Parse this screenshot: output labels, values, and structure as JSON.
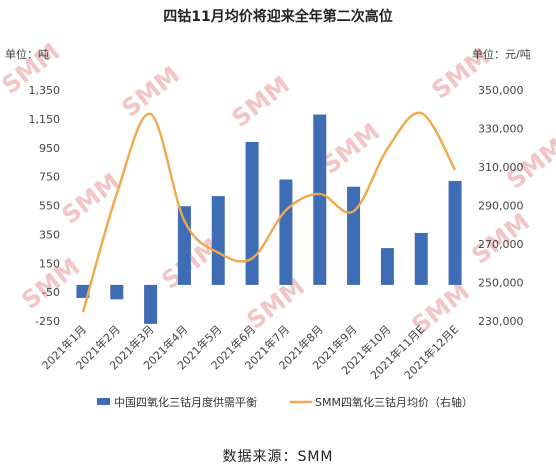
{
  "title": "四钴11月均价将迎来全年第二次高位",
  "source": "数据来源：SMM",
  "watermark": "SMM",
  "chart_data": {
    "type": "bar+line",
    "categories": [
      "2021年1月",
      "2021年2月",
      "2021年3月",
      "2021年4月",
      "2021年5月",
      "2021年6月",
      "2021年7月",
      "2021年8月",
      "2021年9月",
      "2021年10月",
      "2021年11月E",
      "2021年12月E"
    ],
    "left_axis": {
      "unit_label": "单位：吨",
      "ylim": [
        -250,
        1350
      ],
      "ticks": [
        -250,
        -50,
        150,
        350,
        550,
        750,
        950,
        1150,
        1350
      ],
      "tick_labels": [
        "-250",
        "-50",
        "150",
        "350",
        "550",
        "750",
        "950",
        "1,150",
        "1,350"
      ]
    },
    "right_axis": {
      "unit_label": "单位：元/吨",
      "ylim": [
        230000,
        350000
      ],
      "ticks": [
        230000,
        250000,
        270000,
        290000,
        310000,
        330000,
        350000
      ],
      "tick_labels": [
        "230,000",
        "250,000",
        "270,000",
        "290,000",
        "310,000",
        "330,000",
        "350,000"
      ]
    },
    "series": [
      {
        "name": "中国四氧化三钴月度供需平衡",
        "type": "bar",
        "axis": "left",
        "color": "#3e6db5",
        "values": [
          -90,
          -100,
          -270,
          545,
          615,
          990,
          730,
          1180,
          680,
          255,
          360,
          720
        ]
      },
      {
        "name": "SMM四氧化三钴月均价（右轴）",
        "type": "line",
        "axis": "right",
        "color": "#f0a94a",
        "values": [
          234500,
          296000,
          337500,
          282000,
          265500,
          262500,
          287500,
          296000,
          287000,
          319500,
          338000,
          308500
        ]
      }
    ],
    "grid": false,
    "legend_position": "bottom"
  }
}
